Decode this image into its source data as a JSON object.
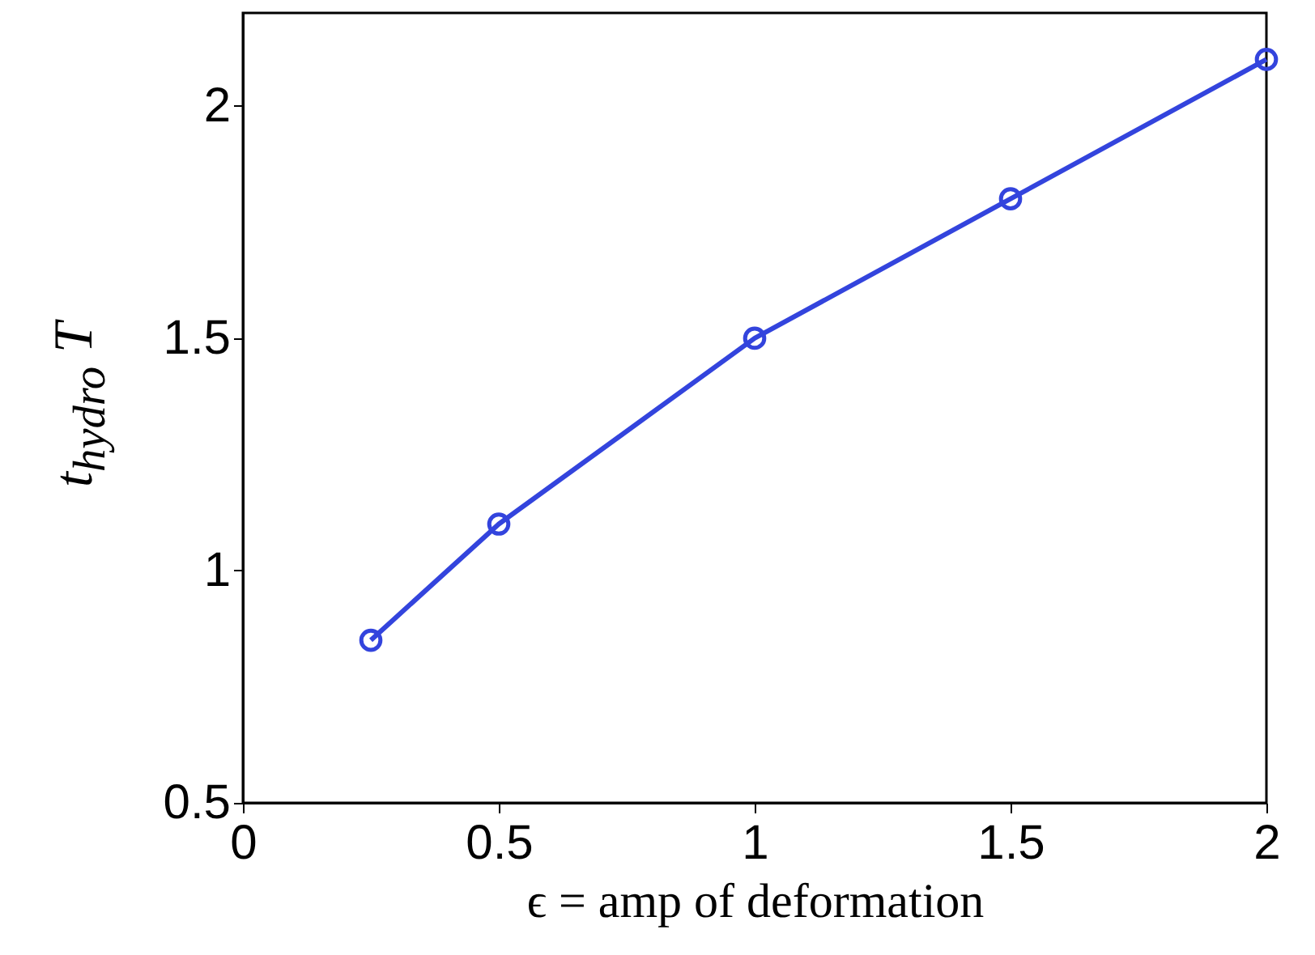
{
  "chart_data": {
    "type": "line",
    "xlabel": "ϵ = amp of deformation",
    "ylabel": "t$_{hydro}$ T",
    "x": [
      0.25,
      0.5,
      1,
      1.5,
      2
    ],
    "series": [
      {
        "color": "#3344dd",
        "values": [
          0.85,
          1.1,
          1.5,
          1.8,
          2.1
        ]
      }
    ],
    "xlim": [
      0,
      2
    ],
    "xticks": [
      0,
      0.5,
      1,
      1.5,
      2
    ],
    "ylim": [
      0.5,
      2.2
    ],
    "yticks": [
      0.5,
      1,
      1.5,
      2
    ],
    "marker": "circle",
    "line_style": "solid",
    "grid": false
  }
}
